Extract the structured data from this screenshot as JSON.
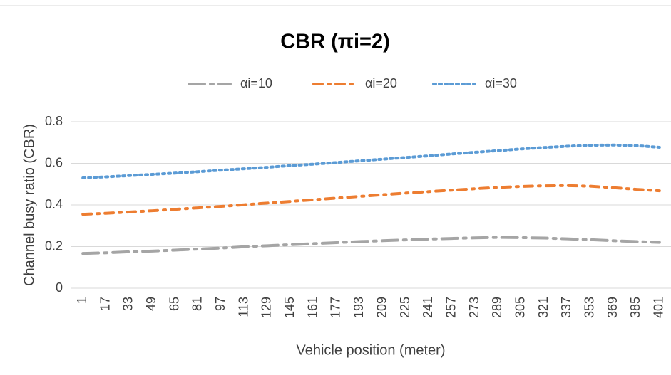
{
  "chart_data": {
    "type": "line",
    "title": "CBR (πi=2)",
    "x_label": "Vehicle position (meter)",
    "y_label": "Channel busy ratio (CBR)",
    "categories": [
      "1",
      "17",
      "33",
      "49",
      "65",
      "81",
      "97",
      "113",
      "129",
      "145",
      "161",
      "177",
      "193",
      "209",
      "225",
      "241",
      "257",
      "273",
      "289",
      "305",
      "321",
      "337",
      "353",
      "369",
      "385",
      "401"
    ],
    "series": [
      {
        "name": "αi=10",
        "color": "#a5a5a5",
        "dash": "22 8 4 8",
        "values": [
          0.167,
          0.17,
          0.175,
          0.178,
          0.183,
          0.188,
          0.193,
          0.199,
          0.204,
          0.209,
          0.214,
          0.219,
          0.224,
          0.228,
          0.232,
          0.236,
          0.239,
          0.242,
          0.244,
          0.243,
          0.241,
          0.237,
          0.233,
          0.228,
          0.224,
          0.22
        ]
      },
      {
        "name": "αi=20",
        "color": "#ed7d31",
        "dash": "12 8 3 8",
        "values": [
          0.355,
          0.36,
          0.366,
          0.372,
          0.379,
          0.386,
          0.393,
          0.401,
          0.409,
          0.417,
          0.425,
          0.433,
          0.441,
          0.449,
          0.457,
          0.464,
          0.471,
          0.478,
          0.484,
          0.489,
          0.492,
          0.493,
          0.49,
          0.483,
          0.475,
          0.468
        ]
      },
      {
        "name": "αi=30",
        "color": "#5b9bd5",
        "dash": "3 5",
        "values": [
          0.53,
          0.535,
          0.541,
          0.547,
          0.553,
          0.56,
          0.567,
          0.574,
          0.581,
          0.589,
          0.596,
          0.604,
          0.612,
          0.62,
          0.628,
          0.636,
          0.645,
          0.653,
          0.661,
          0.669,
          0.676,
          0.682,
          0.687,
          0.688,
          0.685,
          0.677
        ]
      }
    ],
    "ylim": [
      0,
      0.8
    ],
    "yticks": [
      0,
      0.2,
      0.4,
      0.6,
      0.8
    ],
    "grid": true,
    "legend": "top"
  }
}
